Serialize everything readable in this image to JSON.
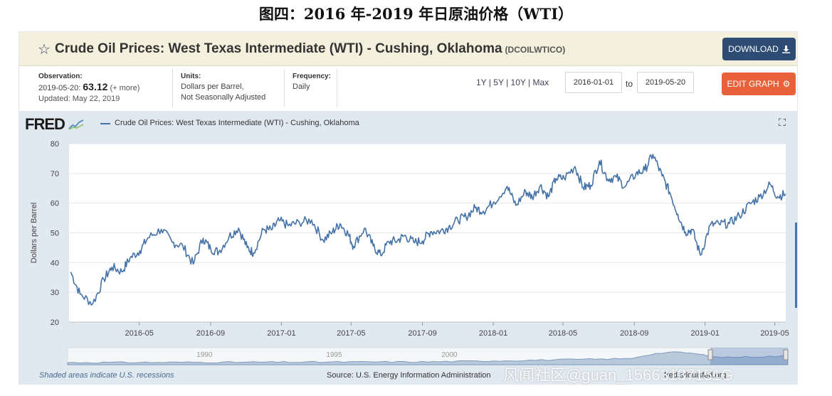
{
  "figure_caption": "图四：2016 年-2019 年日原油价格（WTI）",
  "header": {
    "title": "Crude Oil Prices: West Texas Intermediate (WTI) - Cushing, Oklahoma",
    "series_code": "(DCOILWTICO)",
    "download_label": "DOWNLOAD"
  },
  "info": {
    "observation_label": "Observation:",
    "observation_date": "2019-05-20:",
    "observation_value": "63.12",
    "more": "(+ more)",
    "updated": "Updated: May 22, 2019",
    "units_label": "Units:",
    "units_line1": "Dollars per Barrel,",
    "units_line2": "Not Seasonally Adjusted",
    "frequency_label": "Frequency:",
    "frequency_value": "Daily"
  },
  "controls": {
    "ranges": [
      "1Y",
      "5Y",
      "10Y",
      "Max"
    ],
    "start_date": "2016-01-01",
    "to_label": "to",
    "end_date": "2019-05-20",
    "edit_label": "EDIT GRAPH"
  },
  "chart": {
    "logo": "FRED",
    "legend": "Crude Oil Prices: West Texas Intermediate (WTI) - Cushing, Oklahoma",
    "recession_note": "Shaded areas indicate U.S. recessions",
    "source": "Source: U.S. Energy Information Administration",
    "site": "fred.stlouisfed.org"
  },
  "watermark": "风闻社区@guan_15663137151G",
  "colors": {
    "line": "#4572a7",
    "plot_bg": "#ffffff",
    "chart_bg": "#e1e9f0",
    "download": "#2d4b73",
    "edit": "#e8613b"
  },
  "chart_data": {
    "type": "line",
    "ylabel": "Dollars per Barrel",
    "ylim": [
      20,
      80
    ],
    "yticks": [
      20,
      30,
      40,
      50,
      60,
      70,
      80
    ],
    "xlim": [
      "2016-01-01",
      "2019-05-20"
    ],
    "xticks": [
      "2016-05",
      "2016-09",
      "2017-01",
      "2017-05",
      "2017-09",
      "2018-01",
      "2018-05",
      "2018-09",
      "2019-01",
      "2019-05"
    ],
    "navigator_ticks": [
      "1990",
      "1995",
      "2000"
    ],
    "series": [
      {
        "name": "Crude Oil Prices: West Texas Intermediate (WTI) - Cushing, Oklahoma",
        "x": [
          "2016-01-04",
          "2016-01-20",
          "2016-02-11",
          "2016-03-01",
          "2016-03-15",
          "2016-04-01",
          "2016-04-15",
          "2016-05-02",
          "2016-05-16",
          "2016-06-08",
          "2016-06-27",
          "2016-07-15",
          "2016-08-02",
          "2016-08-19",
          "2016-09-01",
          "2016-09-15",
          "2016-10-03",
          "2016-10-19",
          "2016-11-03",
          "2016-11-14",
          "2016-12-01",
          "2016-12-15",
          "2016-12-28",
          "2017-01-13",
          "2017-02-01",
          "2017-02-22",
          "2017-03-14",
          "2017-03-30",
          "2017-04-12",
          "2017-04-26",
          "2017-05-05",
          "2017-05-24",
          "2017-06-08",
          "2017-06-21",
          "2017-07-05",
          "2017-07-20",
          "2017-08-01",
          "2017-08-17",
          "2017-09-01",
          "2017-09-15",
          "2017-10-02",
          "2017-10-16",
          "2017-11-01",
          "2017-11-15",
          "2017-12-01",
          "2017-12-15",
          "2018-01-02",
          "2018-01-25",
          "2018-02-09",
          "2018-02-26",
          "2018-03-09",
          "2018-03-23",
          "2018-04-06",
          "2018-04-19",
          "2018-05-03",
          "2018-05-22",
          "2018-06-05",
          "2018-06-18",
          "2018-07-03",
          "2018-07-17",
          "2018-08-01",
          "2018-08-16",
          "2018-09-04",
          "2018-09-19",
          "2018-10-03",
          "2018-10-19",
          "2018-11-01",
          "2018-11-15",
          "2018-11-28",
          "2018-12-10",
          "2018-12-24",
          "2019-01-10",
          "2019-01-25",
          "2019-02-12",
          "2019-03-01",
          "2019-03-20",
          "2019-04-05",
          "2019-04-23",
          "2019-05-06",
          "2019-05-20"
        ],
        "values": [
          36.8,
          29.4,
          26.2,
          34.4,
          38.5,
          36.9,
          41.5,
          44.0,
          48.3,
          51.2,
          46.8,
          45.6,
          39.5,
          48.2,
          44.6,
          43.6,
          48.8,
          51.6,
          45.0,
          43.3,
          51.1,
          51.0,
          54.1,
          52.4,
          53.5,
          54.3,
          47.5,
          50.3,
          53.1,
          49.6,
          45.5,
          51.5,
          45.6,
          42.5,
          47.0,
          47.4,
          49.1,
          46.8,
          47.3,
          50.4,
          50.6,
          51.9,
          54.3,
          55.4,
          58.4,
          57.3,
          60.4,
          65.6,
          59.2,
          63.9,
          62.0,
          65.9,
          62.1,
          68.3,
          68.4,
          72.3,
          65.2,
          66.0,
          74.2,
          68.1,
          68.7,
          65.5,
          69.9,
          71.1,
          76.4,
          69.1,
          63.7,
          56.3,
          50.3,
          51.0,
          42.5,
          52.6,
          53.0,
          53.1,
          55.8,
          59.8,
          62.1,
          66.3,
          62.2,
          63.1
        ]
      }
    ]
  }
}
